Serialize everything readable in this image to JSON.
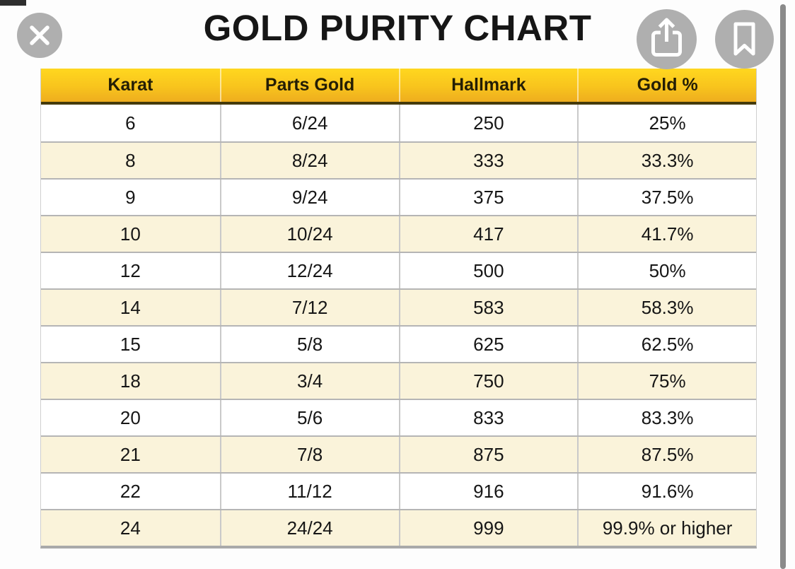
{
  "header": {
    "title": "GOLD PURITY CHART"
  },
  "viewer": {
    "icons": {
      "close": "close-x",
      "share": "ios-share-box-arrow-up",
      "bookmark": "bookmark-outline"
    },
    "scrollbar": "vertical-scrollbar"
  },
  "table": {
    "columns": [
      "Karat",
      "Parts Gold",
      "Hallmark",
      "Gold %"
    ],
    "rows": [
      [
        "6",
        "6/24",
        "250",
        "25%"
      ],
      [
        "8",
        "8/24",
        "333",
        "33.3%"
      ],
      [
        "9",
        "9/24",
        "375",
        "37.5%"
      ],
      [
        "10",
        "10/24",
        "417",
        "41.7%"
      ],
      [
        "12",
        "12/24",
        "500",
        "50%"
      ],
      [
        "14",
        "7/12",
        "583",
        "58.3%"
      ],
      [
        "15",
        "5/8",
        "625",
        "62.5%"
      ],
      [
        "18",
        "3/4",
        "750",
        "75%"
      ],
      [
        "20",
        "5/6",
        "833",
        "83.3%"
      ],
      [
        "21",
        "7/8",
        "875",
        "87.5%"
      ],
      [
        "22",
        "11/12",
        "916",
        "91.6%"
      ],
      [
        "24",
        "24/24",
        "999",
        "99.9% or higher"
      ]
    ],
    "cell_names": [
      "cell-karat",
      "cell-parts-gold",
      "cell-hallmark",
      "cell-gold-percent"
    ]
  },
  "colors": {
    "header_gradient_top": "#ffd71f",
    "header_gradient_bottom": "#eead1e",
    "header_border": "#453a0a",
    "row_alt": "#faf3da",
    "row_white": "#ffffff",
    "grid_line": "#c9c9c9",
    "row_divider": "#b5b5b5",
    "table_bottom_border": "#a9a9a9",
    "button_circle": "#afafaf",
    "scrollbar": "#8a8a8a",
    "title_text": "#161616"
  }
}
